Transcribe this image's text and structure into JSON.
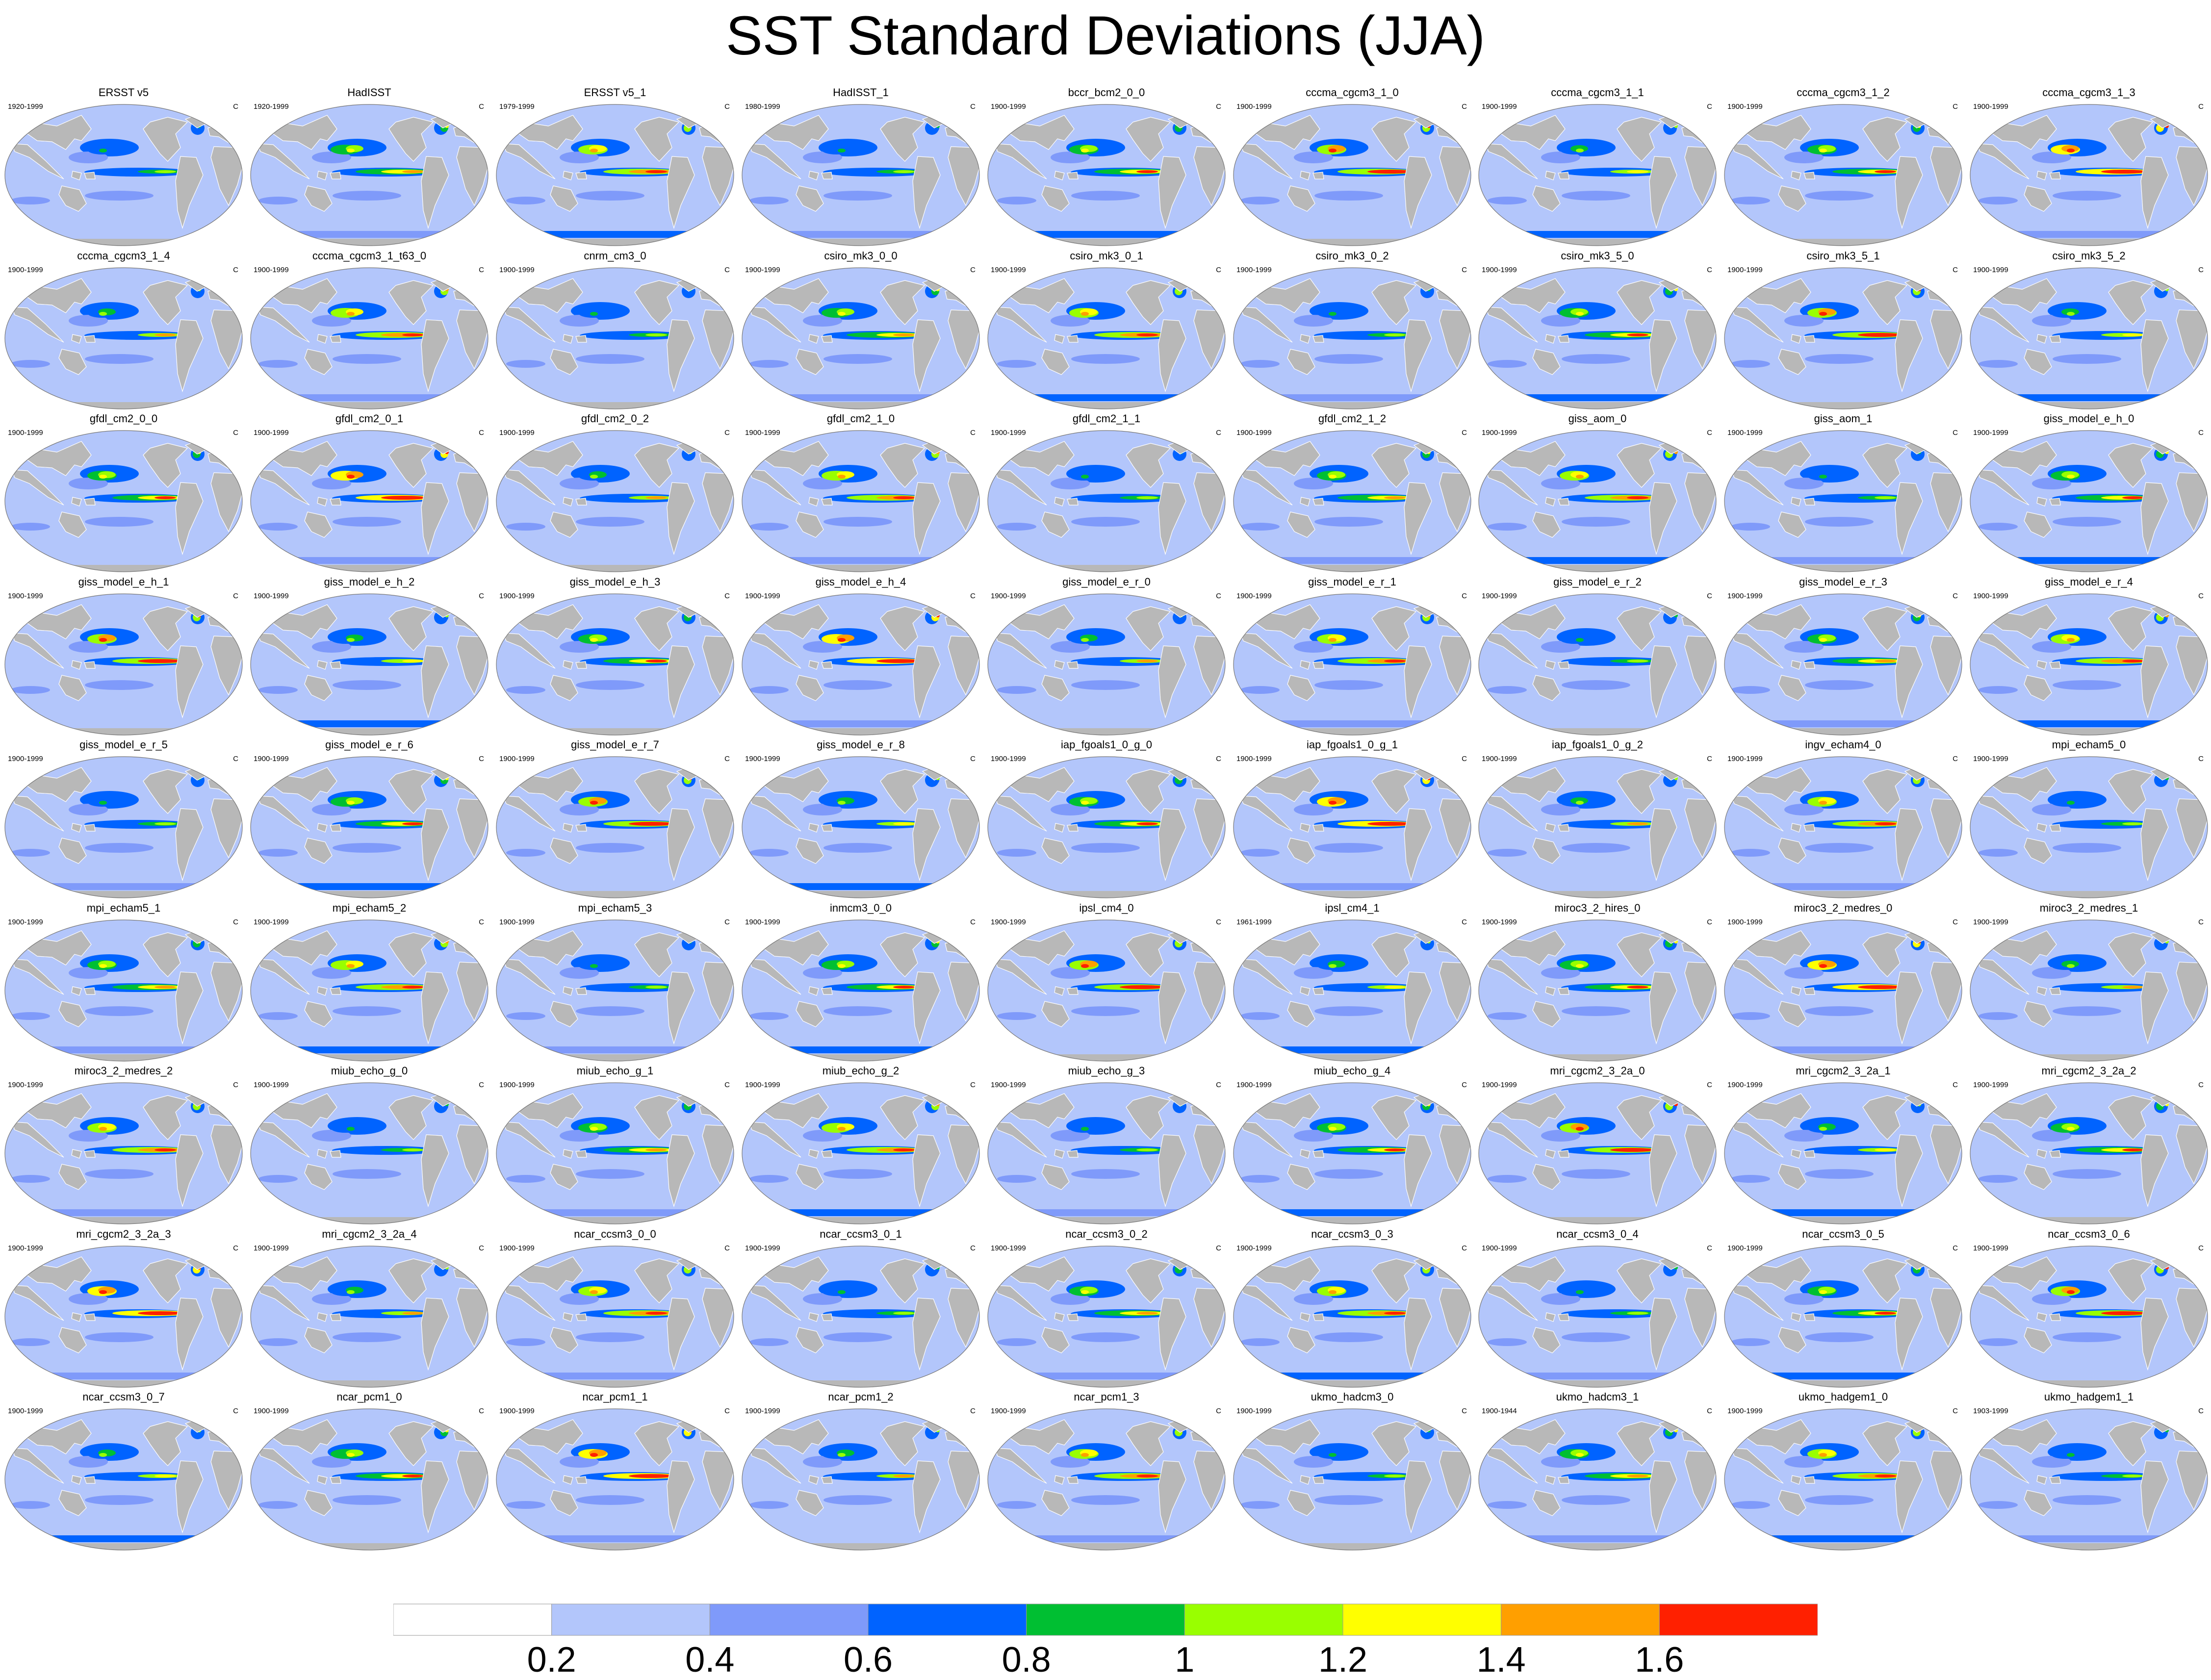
{
  "title": "SST Standard Deviations (JJA)",
  "units": "C",
  "panels": [
    {
      "name": "ERSST v5",
      "years": "1920-1999"
    },
    {
      "name": "HadISST",
      "years": "1920-1999"
    },
    {
      "name": "ERSST v5_1",
      "years": "1979-1999"
    },
    {
      "name": "HadISST_1",
      "years": "1980-1999"
    },
    {
      "name": "bccr_bcm2_0_0",
      "years": "1900-1999"
    },
    {
      "name": "cccma_cgcm3_1_0",
      "years": "1900-1999"
    },
    {
      "name": "cccma_cgcm3_1_1",
      "years": "1900-1999"
    },
    {
      "name": "cccma_cgcm3_1_2",
      "years": "1900-1999"
    },
    {
      "name": "cccma_cgcm3_1_3",
      "years": "1900-1999"
    },
    {
      "name": "cccma_cgcm3_1_4",
      "years": "1900-1999"
    },
    {
      "name": "cccma_cgcm3_1_t63_0",
      "years": "1900-1999"
    },
    {
      "name": "cnrm_cm3_0",
      "years": "1900-1999"
    },
    {
      "name": "csiro_mk3_0_0",
      "years": "1900-1999"
    },
    {
      "name": "csiro_mk3_0_1",
      "years": "1900-1999"
    },
    {
      "name": "csiro_mk3_0_2",
      "years": "1900-1999"
    },
    {
      "name": "csiro_mk3_5_0",
      "years": "1900-1999"
    },
    {
      "name": "csiro_mk3_5_1",
      "years": "1900-1999"
    },
    {
      "name": "csiro_mk3_5_2",
      "years": "1900-1999"
    },
    {
      "name": "gfdl_cm2_0_0",
      "years": "1900-1999"
    },
    {
      "name": "gfdl_cm2_0_1",
      "years": "1900-1999"
    },
    {
      "name": "gfdl_cm2_0_2",
      "years": "1900-1999"
    },
    {
      "name": "gfdl_cm2_1_0",
      "years": "1900-1999"
    },
    {
      "name": "gfdl_cm2_1_1",
      "years": "1900-1999"
    },
    {
      "name": "gfdl_cm2_1_2",
      "years": "1900-1999"
    },
    {
      "name": "giss_aom_0",
      "years": "1900-1999"
    },
    {
      "name": "giss_aom_1",
      "years": "1900-1999"
    },
    {
      "name": "giss_model_e_h_0",
      "years": "1900-1999"
    },
    {
      "name": "giss_model_e_h_1",
      "years": "1900-1999"
    },
    {
      "name": "giss_model_e_h_2",
      "years": "1900-1999"
    },
    {
      "name": "giss_model_e_h_3",
      "years": "1900-1999"
    },
    {
      "name": "giss_model_e_h_4",
      "years": "1900-1999"
    },
    {
      "name": "giss_model_e_r_0",
      "years": "1900-1999"
    },
    {
      "name": "giss_model_e_r_1",
      "years": "1900-1999"
    },
    {
      "name": "giss_model_e_r_2",
      "years": "1900-1999"
    },
    {
      "name": "giss_model_e_r_3",
      "years": "1900-1999"
    },
    {
      "name": "giss_model_e_r_4",
      "years": "1900-1999"
    },
    {
      "name": "giss_model_e_r_5",
      "years": "1900-1999"
    },
    {
      "name": "giss_model_e_r_6",
      "years": "1900-1999"
    },
    {
      "name": "giss_model_e_r_7",
      "years": "1900-1999"
    },
    {
      "name": "giss_model_e_r_8",
      "years": "1900-1999"
    },
    {
      "name": "iap_fgoals1_0_g_0",
      "years": "1900-1999"
    },
    {
      "name": "iap_fgoals1_0_g_1",
      "years": "1900-1999"
    },
    {
      "name": "iap_fgoals1_0_g_2",
      "years": "1900-1999"
    },
    {
      "name": "ingv_echam4_0",
      "years": "1900-1999"
    },
    {
      "name": "mpi_echam5_0",
      "years": "1900-1999"
    },
    {
      "name": "mpi_echam5_1",
      "years": "1900-1999"
    },
    {
      "name": "mpi_echam5_2",
      "years": "1900-1999"
    },
    {
      "name": "mpi_echam5_3",
      "years": "1900-1999"
    },
    {
      "name": "inmcm3_0_0",
      "years": "1900-1999"
    },
    {
      "name": "ipsl_cm4_0",
      "years": "1900-1999"
    },
    {
      "name": "ipsl_cm4_1",
      "years": "1961-1999"
    },
    {
      "name": "miroc3_2_hires_0",
      "years": "1900-1999"
    },
    {
      "name": "miroc3_2_medres_0",
      "years": "1900-1999"
    },
    {
      "name": "miroc3_2_medres_1",
      "years": "1900-1999"
    },
    {
      "name": "miroc3_2_medres_2",
      "years": "1900-1999"
    },
    {
      "name": "miub_echo_g_0",
      "years": "1900-1999"
    },
    {
      "name": "miub_echo_g_1",
      "years": "1900-1999"
    },
    {
      "name": "miub_echo_g_2",
      "years": "1900-1999"
    },
    {
      "name": "miub_echo_g_3",
      "years": "1900-1999"
    },
    {
      "name": "miub_echo_g_4",
      "years": "1900-1999"
    },
    {
      "name": "mri_cgcm2_3_2a_0",
      "years": "1900-1999"
    },
    {
      "name": "mri_cgcm2_3_2a_1",
      "years": "1900-1999"
    },
    {
      "name": "mri_cgcm2_3_2a_2",
      "years": "1900-1999"
    },
    {
      "name": "mri_cgcm2_3_2a_3",
      "years": "1900-1999"
    },
    {
      "name": "mri_cgcm2_3_2a_4",
      "years": "1900-1999"
    },
    {
      "name": "ncar_ccsm3_0_0",
      "years": "1900-1999"
    },
    {
      "name": "ncar_ccsm3_0_1",
      "years": "1900-1999"
    },
    {
      "name": "ncar_ccsm3_0_2",
      "years": "1900-1999"
    },
    {
      "name": "ncar_ccsm3_0_3",
      "years": "1900-1999"
    },
    {
      "name": "ncar_ccsm3_0_4",
      "years": "1900-1999"
    },
    {
      "name": "ncar_ccsm3_0_5",
      "years": "1900-1999"
    },
    {
      "name": "ncar_ccsm3_0_6",
      "years": "1900-1999"
    },
    {
      "name": "ncar_ccsm3_0_7",
      "years": "1900-1999"
    },
    {
      "name": "ncar_pcm1_0",
      "years": "1900-1999"
    },
    {
      "name": "ncar_pcm1_1",
      "years": "1900-1999"
    },
    {
      "name": "ncar_pcm1_2",
      "years": "1900-1999"
    },
    {
      "name": "ncar_pcm1_3",
      "years": "1900-1999"
    },
    {
      "name": "ukmo_hadcm3_0",
      "years": "1900-1999"
    },
    {
      "name": "ukmo_hadcm3_1",
      "years": "1900-1944"
    },
    {
      "name": "ukmo_hadgem1_0",
      "years": "1900-1999"
    },
    {
      "name": "ukmo_hadgem1_1",
      "years": "1903-1999"
    }
  ],
  "colorbar": {
    "labels": [
      "0.2",
      "0.4",
      "0.6",
      "0.8",
      "1",
      "1.2",
      "1.4",
      "1.6"
    ],
    "colors": [
      "#ffffff",
      "#b3c6fb",
      "#7f9afa",
      "#0063ff",
      "#00bf32",
      "#99ff00",
      "#ffff00",
      "#ff9f00",
      "#ff2000"
    ]
  },
  "map_colors": {
    "land": "#b8b8b8",
    "coast": "#ffffff",
    "outline": "#777777"
  }
}
